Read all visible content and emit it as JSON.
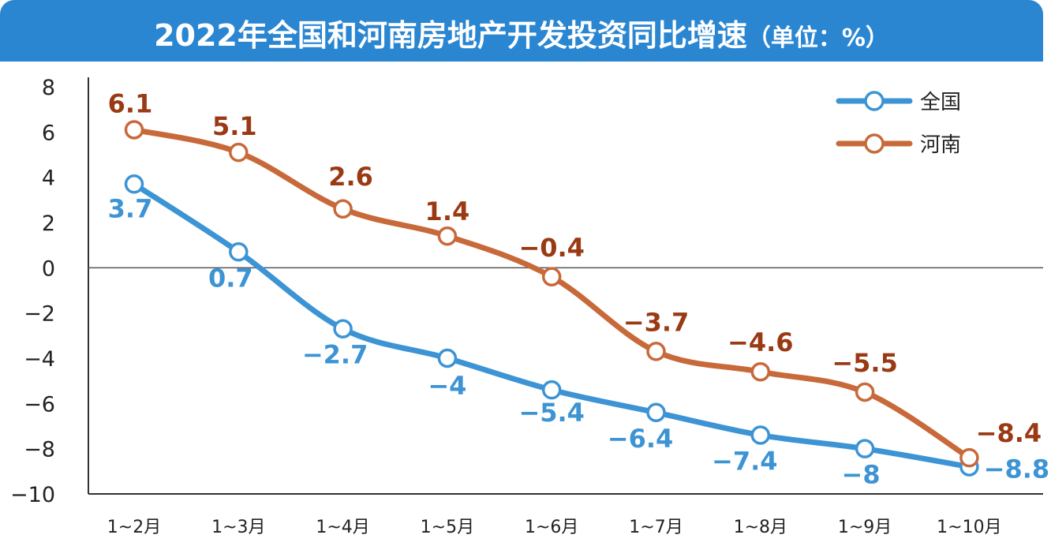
{
  "title": "2022年全国和河南房地产开发投资同比增速",
  "title_unit": "（单位：%）",
  "colors": {
    "title_bg": "#2a86d1",
    "national": "#3d94d4",
    "henan": "#c8693a",
    "henan_label": "#9a3a14",
    "axis": "#333333"
  },
  "chart_data": {
    "type": "line",
    "categories": [
      "1~2月",
      "1~3月",
      "1~4月",
      "1~5月",
      "1~6月",
      "1~7月",
      "1~8月",
      "1~9月",
      "1~10月"
    ],
    "ylim": [
      -10,
      8
    ],
    "yticks": [
      8,
      6,
      4,
      2,
      0,
      -2,
      -4,
      -6,
      -8,
      -10
    ],
    "legend_position": "top-right",
    "series": [
      {
        "name": "全国",
        "values": [
          3.7,
          0.7,
          -2.7,
          -4,
          -5.4,
          -6.4,
          -7.4,
          -8,
          -8.8
        ],
        "labels": [
          "3.7",
          "0.7",
          "−2.7",
          "−4",
          "−5.4",
          "−6.4",
          "−7.4",
          "−8",
          "−8.8"
        ]
      },
      {
        "name": "河南",
        "values": [
          6.1,
          5.1,
          2.6,
          1.4,
          -0.4,
          -3.7,
          -4.6,
          -5.5,
          -8.4
        ],
        "labels": [
          "6.1",
          "5.1",
          "2.6",
          "1.4",
          "−0.4",
          "−3.7",
          "−4.6",
          "−5.5",
          "−8.4"
        ]
      }
    ]
  }
}
